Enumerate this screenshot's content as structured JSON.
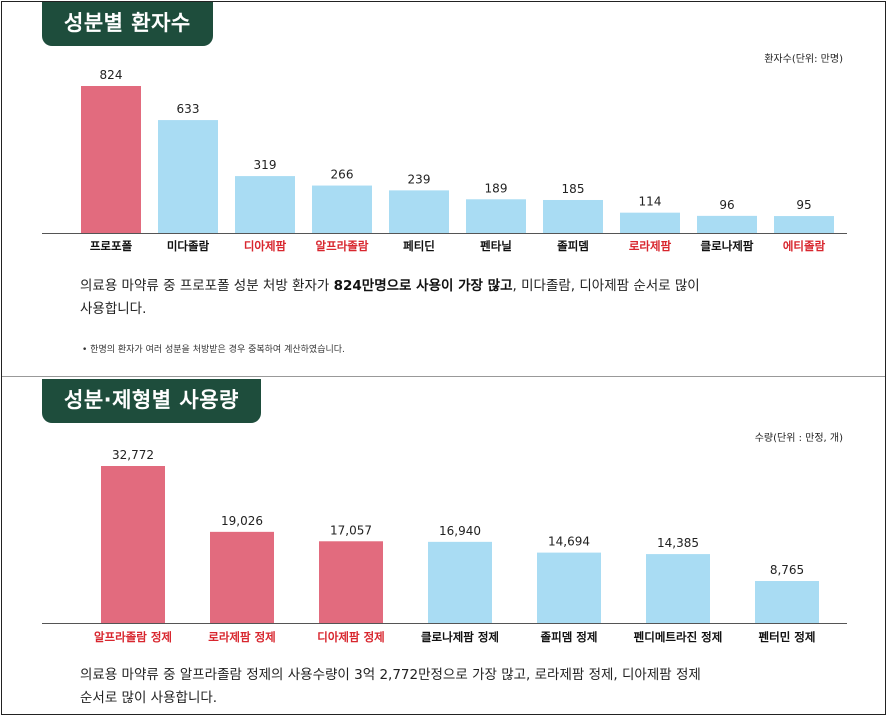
{
  "chart_data": [
    {
      "type": "bar",
      "title": "성분별 환자수",
      "unit_label": "환자수(단위: 만명)",
      "categories": [
        "프로포폴",
        "미다졸람",
        "디아제팜",
        "알프라졸람",
        "페티딘",
        "펜타닐",
        "졸피뎀",
        "로라제팜",
        "클로나제팜",
        "에티졸람"
      ],
      "values": [
        824,
        633,
        319,
        266,
        239,
        189,
        185,
        114,
        96,
        95
      ],
      "value_labels": [
        "824",
        "633",
        "319",
        "266",
        "239",
        "189",
        "185",
        "114",
        "96",
        "95"
      ],
      "highlight_bars": [
        0
      ],
      "highlight_labels": [
        2,
        3,
        7,
        9
      ],
      "colors": {
        "highlight": "#e26b7e",
        "normal": "#a9dcf3",
        "label_red": "#d8262e",
        "label_normal": "#111111"
      },
      "ylim": [
        0,
        824
      ],
      "grid": false,
      "legend": "none"
    },
    {
      "type": "bar",
      "title": "성분·제형별 사용량",
      "unit_label": "수량(단위 : 만정, 개)",
      "categories": [
        "알프라졸람 정제",
        "로라제팜 정제",
        "디아제팜 정제",
        "클로나제팜 정제",
        "졸피뎀 정제",
        "펜디메트라진 정제",
        "펜터민 정제"
      ],
      "values": [
        32772,
        19026,
        17057,
        16940,
        14694,
        14385,
        8765
      ],
      "value_labels": [
        "32,772",
        "19,026",
        "17,057",
        "16,940",
        "14,694",
        "14,385",
        "8,765"
      ],
      "highlight_bars": [
        0,
        1,
        2
      ],
      "highlight_labels": [
        0,
        1,
        2
      ],
      "colors": {
        "highlight": "#e26b7e",
        "normal": "#a9dcf3",
        "label_red": "#d8262e",
        "label_normal": "#111111"
      },
      "ylim": [
        0,
        32772
      ],
      "grid": false,
      "legend": "none"
    }
  ],
  "section1": {
    "desc_a": "의료용 마약류 중 프로포폴 성분 처방 환자가 ",
    "desc_bold": "824만명으로 사용이 가장 많고",
    "desc_b": ", 미다졸람, 디아제팜 순서로 많이",
    "desc_line2": "사용합니다.",
    "note": "• 한명의 환자가 여러 성분을 처방받은 경우 중복하여 계산하였습니다."
  },
  "section2": {
    "desc_line1": "의료용 마약류 중 알프라졸람 정제의 사용수량이 3억 2,772만정으로 가장 많고, 로라제팜 정제, 디아제팜 정제",
    "desc_line2": "순서로 많이 사용합니다."
  }
}
